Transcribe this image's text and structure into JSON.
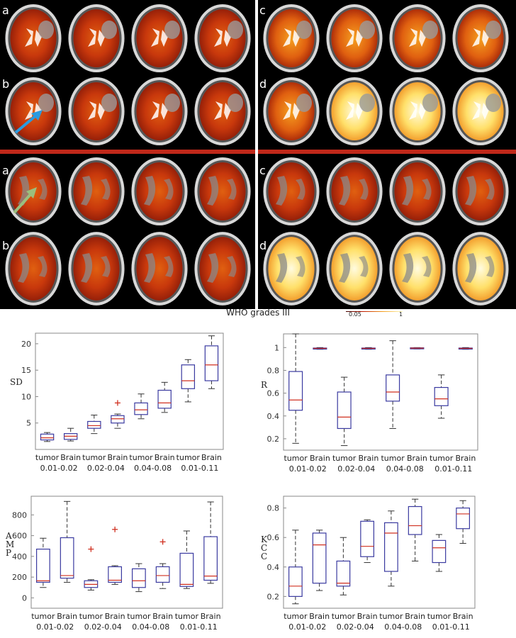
{
  "figure": {
    "heading": "WHO grades III",
    "colorbar_min": "0.05",
    "colorbar_max": "1",
    "panel_letters": {
      "top_left": [
        "a",
        "b"
      ],
      "top_right": [
        "c",
        "d"
      ],
      "bottom_left": [
        "a",
        "b"
      ],
      "bottom_right": [
        "c",
        "d"
      ]
    },
    "arrow_colors": {
      "blue": "#2a9be0",
      "green": "#9bbf7e"
    },
    "separator_color": "#c0281a"
  },
  "chart_data": [
    {
      "type": "box",
      "ylabel": "SD",
      "ylim": [
        0,
        22
      ],
      "yticks": [
        5,
        10,
        15,
        20
      ],
      "categories": [
        "tumor",
        "Brain",
        "tumor",
        "Brain",
        "tumor",
        "Brain",
        "tumor",
        "Brain"
      ],
      "groups": [
        "0.01-0.02",
        "0.02-0.04",
        "0.04-0.08",
        "0.01-0.11"
      ],
      "boxes": [
        {
          "min": 1.5,
          "q1": 1.8,
          "median": 2.2,
          "q3": 2.9,
          "max": 3.2,
          "outliers": []
        },
        {
          "min": 1.6,
          "q1": 1.9,
          "median": 2.5,
          "q3": 3.0,
          "max": 4.0,
          "outliers": []
        },
        {
          "min": 3.0,
          "q1": 4.0,
          "median": 4.5,
          "q3": 5.3,
          "max": 6.5,
          "outliers": []
        },
        {
          "min": 4.0,
          "q1": 5.0,
          "median": 5.8,
          "q3": 6.4,
          "max": 6.7,
          "outliers": [
            8.8
          ]
        },
        {
          "min": 5.8,
          "q1": 6.6,
          "median": 7.5,
          "q3": 8.8,
          "max": 10.5,
          "outliers": []
        },
        {
          "min": 7.0,
          "q1": 7.8,
          "median": 8.8,
          "q3": 11.2,
          "max": 12.7,
          "outliers": []
        },
        {
          "min": 9.0,
          "q1": 11.5,
          "median": 13.0,
          "q3": 16.0,
          "max": 17.0,
          "outliers": []
        },
        {
          "min": 11.5,
          "q1": 13.0,
          "median": 16.0,
          "q3": 19.6,
          "max": 21.5,
          "outliers": []
        }
      ]
    },
    {
      "type": "box",
      "ylabel": "R",
      "ylim": [
        0.1,
        1.12
      ],
      "yticks": [
        0.2,
        0.4,
        0.6,
        0.8,
        1
      ],
      "categories": [
        "tumor",
        "Brain",
        "tumor",
        "Brain",
        "tumor",
        "Brain",
        "tumor",
        "Brain"
      ],
      "groups": [
        "0.01-0.02",
        "0.02-0.04",
        "0.04-0.08",
        "0.01-0.11"
      ],
      "boxes": [
        {
          "min": 0.16,
          "q1": 0.45,
          "median": 0.54,
          "q3": 0.79,
          "max": 1.12,
          "outliers": []
        },
        {
          "min": 0.985,
          "q1": 0.99,
          "median": 0.993,
          "q3": 0.996,
          "max": 1.0,
          "outliers": []
        },
        {
          "min": 0.14,
          "q1": 0.29,
          "median": 0.39,
          "q3": 0.61,
          "max": 0.74,
          "outliers": []
        },
        {
          "min": 0.985,
          "q1": 0.99,
          "median": 0.993,
          "q3": 0.996,
          "max": 1.0,
          "outliers": []
        },
        {
          "min": 0.29,
          "q1": 0.53,
          "median": 0.61,
          "q3": 0.76,
          "max": 1.06,
          "outliers": []
        },
        {
          "min": 0.988,
          "q1": 0.992,
          "median": 0.995,
          "q3": 0.998,
          "max": 1.0,
          "outliers": []
        },
        {
          "min": 0.38,
          "q1": 0.49,
          "median": 0.55,
          "q3": 0.65,
          "max": 0.76,
          "outliers": []
        },
        {
          "min": 0.985,
          "q1": 0.99,
          "median": 0.993,
          "q3": 0.996,
          "max": 1.0,
          "outliers": []
        }
      ]
    },
    {
      "type": "box",
      "ylabel": "AMP",
      "ylim": [
        -100,
        980
      ],
      "yticks": [
        0,
        200,
        400,
        600,
        800
      ],
      "categories": [
        "tumor",
        "Brain",
        "tumor",
        "Brain",
        "tumor",
        "Brain",
        "tumor",
        "Brain"
      ],
      "groups": [
        "0.01-0.02",
        "0.02-0.04",
        "0.04-0.08",
        "0.01-0.11"
      ],
      "boxes": [
        {
          "min": 100,
          "q1": 150,
          "median": 165,
          "q3": 470,
          "max": 575,
          "outliers": []
        },
        {
          "min": 150,
          "q1": 190,
          "median": 215,
          "q3": 580,
          "max": 930,
          "outliers": []
        },
        {
          "min": 75,
          "q1": 100,
          "median": 130,
          "q3": 165,
          "max": 175,
          "outliers": [
            470
          ]
        },
        {
          "min": 130,
          "q1": 150,
          "median": 170,
          "q3": 300,
          "max": 310,
          "outliers": [
            660
          ]
        },
        {
          "min": 60,
          "q1": 100,
          "median": 165,
          "q3": 280,
          "max": 330,
          "outliers": []
        },
        {
          "min": 90,
          "q1": 150,
          "median": 215,
          "q3": 300,
          "max": 330,
          "outliers": [
            540
          ]
        },
        {
          "min": 90,
          "q1": 110,
          "median": 130,
          "q3": 430,
          "max": 645,
          "outliers": []
        },
        {
          "min": 140,
          "q1": 170,
          "median": 210,
          "q3": 590,
          "max": 925,
          "outliers": []
        }
      ]
    },
    {
      "type": "box",
      "ylabel": "KCC",
      "ylim": [
        0.12,
        0.88
      ],
      "yticks": [
        0.2,
        0.4,
        0.6,
        0.8
      ],
      "categories": [
        "tumor",
        "Brain",
        "tumor",
        "Brain",
        "tumor",
        "Brain",
        "tumor",
        "Brain"
      ],
      "groups": [
        "0.01-0.02",
        "0.02-0.04",
        "0.04-0.08",
        "0.01-0.11"
      ],
      "boxes": [
        {
          "min": 0.15,
          "q1": 0.2,
          "median": 0.27,
          "q3": 0.4,
          "max": 0.65,
          "outliers": []
        },
        {
          "min": 0.24,
          "q1": 0.29,
          "median": 0.55,
          "q3": 0.63,
          "max": 0.65,
          "outliers": []
        },
        {
          "min": 0.21,
          "q1": 0.27,
          "median": 0.29,
          "q3": 0.44,
          "max": 0.6,
          "outliers": []
        },
        {
          "min": 0.43,
          "q1": 0.47,
          "median": 0.54,
          "q3": 0.71,
          "max": 0.72,
          "outliers": []
        },
        {
          "min": 0.27,
          "q1": 0.37,
          "median": 0.63,
          "q3": 0.7,
          "max": 0.78,
          "outliers": []
        },
        {
          "min": 0.44,
          "q1": 0.62,
          "median": 0.68,
          "q3": 0.81,
          "max": 0.86,
          "outliers": []
        },
        {
          "min": 0.37,
          "q1": 0.43,
          "median": 0.53,
          "q3": 0.58,
          "max": 0.62,
          "outliers": []
        },
        {
          "min": 0.56,
          "q1": 0.66,
          "median": 0.76,
          "q3": 0.8,
          "max": 0.85,
          "outliers": []
        }
      ]
    }
  ]
}
